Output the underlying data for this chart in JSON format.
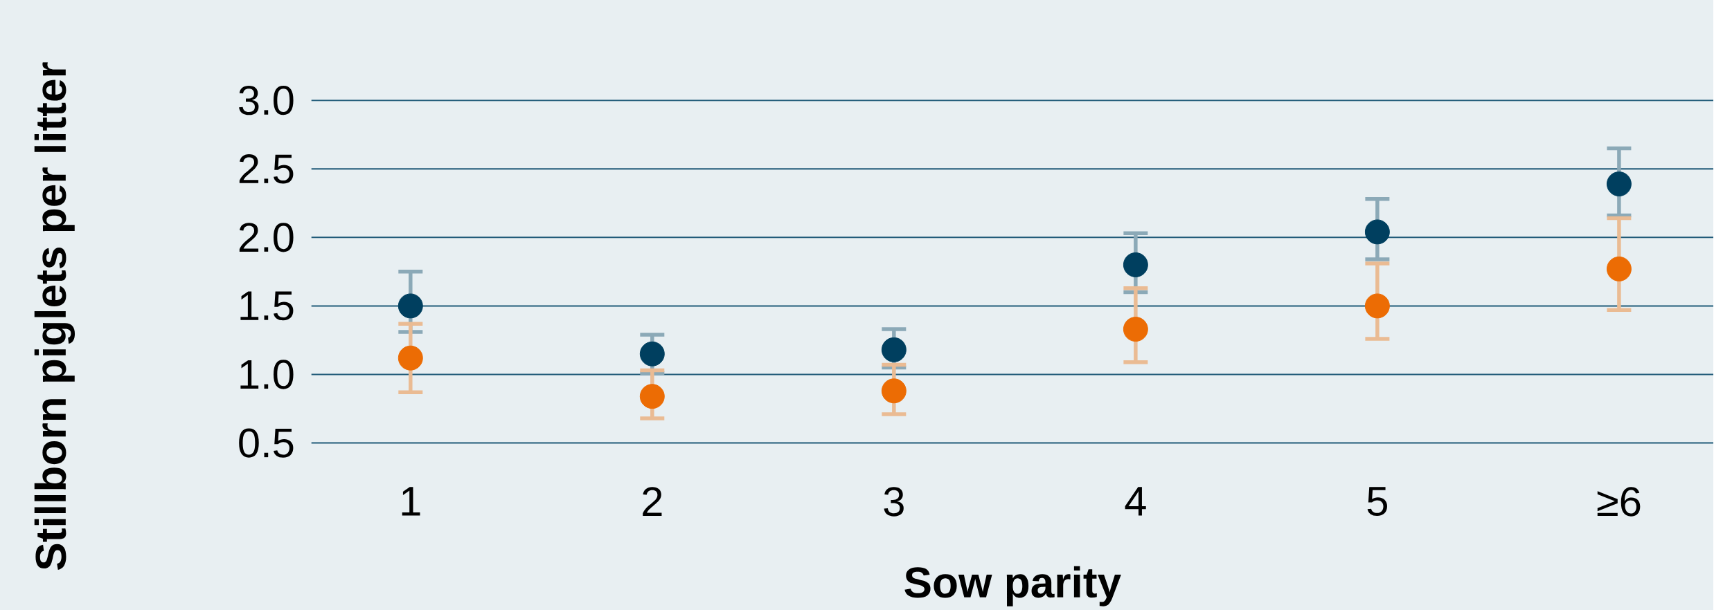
{
  "chart_data": {
    "type": "scatter",
    "xlabel": "Sow parity",
    "ylabel": "Stillborn piglets per litter",
    "categories": [
      "1",
      "2",
      "3",
      "4",
      "5",
      "≥6"
    ],
    "series": [
      {
        "color": "#003f5f",
        "values": [
          1.5,
          1.15,
          1.18,
          1.8,
          2.04,
          2.39
        ],
        "errors": [
          [
            1.31,
            1.75
          ],
          [
            1.01,
            1.29
          ],
          [
            1.05,
            1.33
          ],
          [
            1.6,
            2.03
          ],
          [
            1.84,
            2.28
          ],
          [
            2.16,
            2.65
          ]
        ]
      },
      {
        "color": "#ec6c04",
        "values": [
          1.12,
          0.84,
          0.88,
          1.33,
          1.5,
          1.77
        ],
        "errors": [
          [
            0.87,
            1.37
          ],
          [
            0.68,
            1.03
          ],
          [
            0.71,
            1.07
          ],
          [
            1.09,
            1.63
          ],
          [
            1.26,
            1.81
          ],
          [
            1.47,
            2.14
          ]
        ]
      }
    ],
    "ylim": [
      0.5,
      3.0
    ],
    "yticks": [
      0.5,
      {
        "value": 1.0,
        "label": "1.0"
      },
      1.5,
      {
        "value": 2.0,
        "label": "2.0"
      },
      2.5,
      {
        "value": 3.0,
        "label": "3.0"
      }
    ],
    "grid": "y",
    "marker": "circle"
  }
}
